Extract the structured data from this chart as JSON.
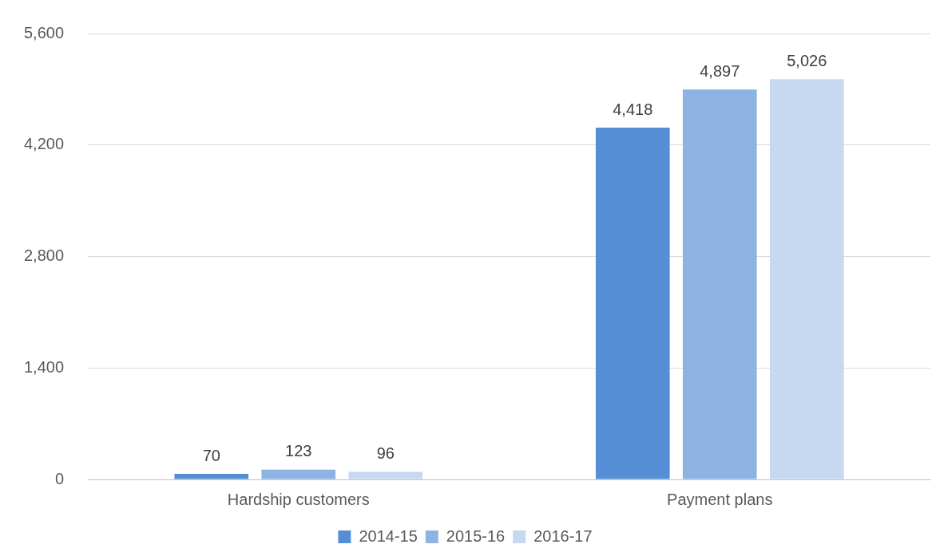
{
  "chart_data": {
    "type": "bar",
    "categories": [
      "Hardship customers",
      "Payment plans"
    ],
    "series": [
      {
        "name": "2014-15",
        "color": "#558ed5",
        "values": [
          70,
          4418
        ],
        "value_labels": [
          "70",
          "4,418"
        ]
      },
      {
        "name": "2015-16",
        "color": "#8db3e2",
        "values": [
          123,
          4897
        ],
        "value_labels": [
          "123",
          "4,897"
        ]
      },
      {
        "name": "2016-17",
        "color": "#c6d9f0",
        "values": [
          96,
          5026
        ],
        "value_labels": [
          "96",
          "5,026"
        ]
      }
    ],
    "ylim": [
      0,
      5600
    ],
    "yticks": [
      0,
      {
        "value": 1400,
        "label": "1,400"
      },
      {
        "value": 2800,
        "label": "2,800"
      },
      {
        "value": 4200,
        "label": "4,200"
      },
      {
        "value": 5600,
        "label": "5,600"
      }
    ],
    "grid": "y",
    "legend": "bottom"
  }
}
